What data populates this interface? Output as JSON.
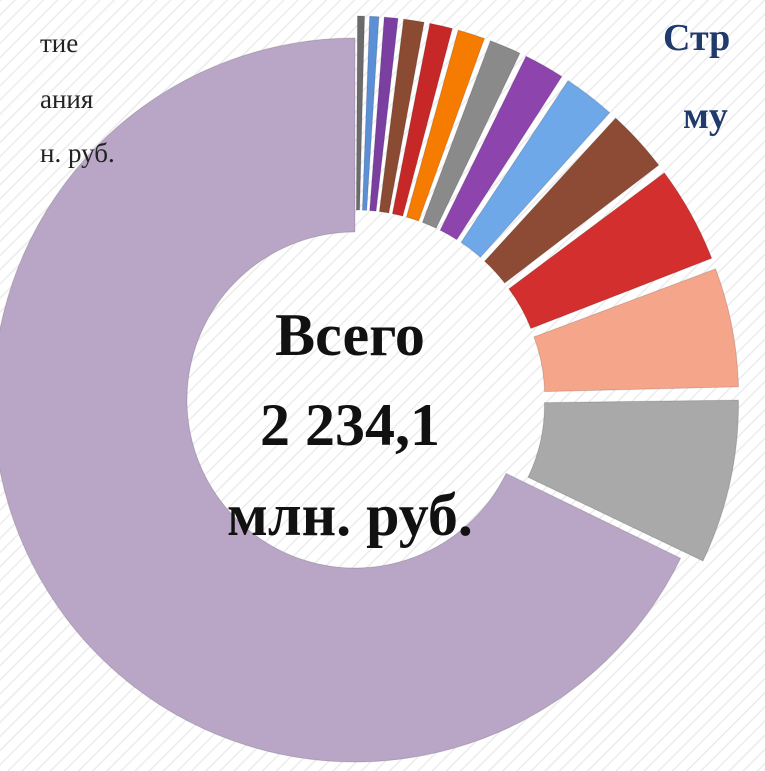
{
  "chart_data": {
    "type": "donut",
    "values": [
      0.5,
      0.6,
      0.8,
      1.1,
      1.2,
      1.4,
      1.6,
      2,
      2.5,
      3,
      4.5,
      5.5,
      7.5,
      67.8
    ],
    "colors": [
      "#6b6b6b",
      "#5b8fd6",
      "#7a3fa0",
      "#8b4a32",
      "#c62828",
      "#f57c00",
      "#8a8a8a",
      "#8e44ad",
      "#6fa8e8",
      "#8d4b35",
      "#d32f2f",
      "#f4a58a",
      "#a9a9a9",
      "#b9a6c6"
    ],
    "center_label": [
      "Всего",
      "2 234,1",
      "млн. руб."
    ]
  },
  "fragments": {
    "left": [
      "тие",
      "ания",
      "н. руб."
    ],
    "right": [
      "Стр",
      "му"
    ]
  }
}
